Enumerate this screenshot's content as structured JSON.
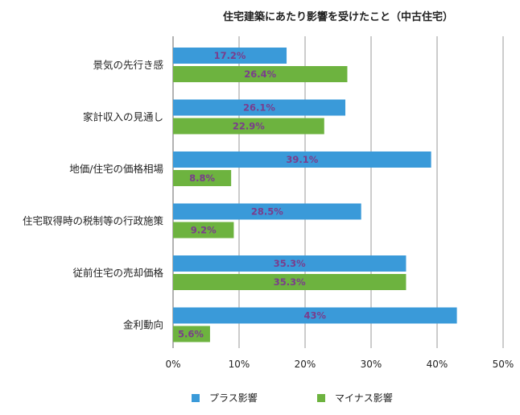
{
  "chart_data": {
    "type": "bar",
    "orientation": "horizontal",
    "title": "住宅建築にあたり影響を受けたこと（中古住宅）",
    "categories": [
      "景気の先行き感",
      "家計収入の見通し",
      "地価/住宅の価格相場",
      "住宅取得時の税制等の行政施策",
      "従前住宅の売却価格",
      "金利動向"
    ],
    "series": [
      {
        "name": "プラス影響",
        "color": "#3a9ad9",
        "values": [
          17.2,
          26.1,
          39.1,
          28.5,
          35.3,
          43
        ],
        "labels": [
          "17.2%",
          "26.1%",
          "39.1%",
          "28.5%",
          "35.3%",
          "43%"
        ]
      },
      {
        "name": "マイナス影響",
        "color": "#6db33f",
        "values": [
          26.4,
          22.9,
          8.8,
          9.2,
          35.3,
          5.6
        ],
        "labels": [
          "26.4%",
          "22.9%",
          "8.8%",
          "9.2%",
          "35.3%",
          "5.6%"
        ]
      }
    ],
    "xlim": [
      0,
      50
    ],
    "xticks": [
      "0%",
      "10%",
      "20%",
      "30%",
      "40%",
      "50%"
    ],
    "xlabel": "",
    "ylabel": "",
    "grid": true,
    "legend_position": "bottom"
  }
}
